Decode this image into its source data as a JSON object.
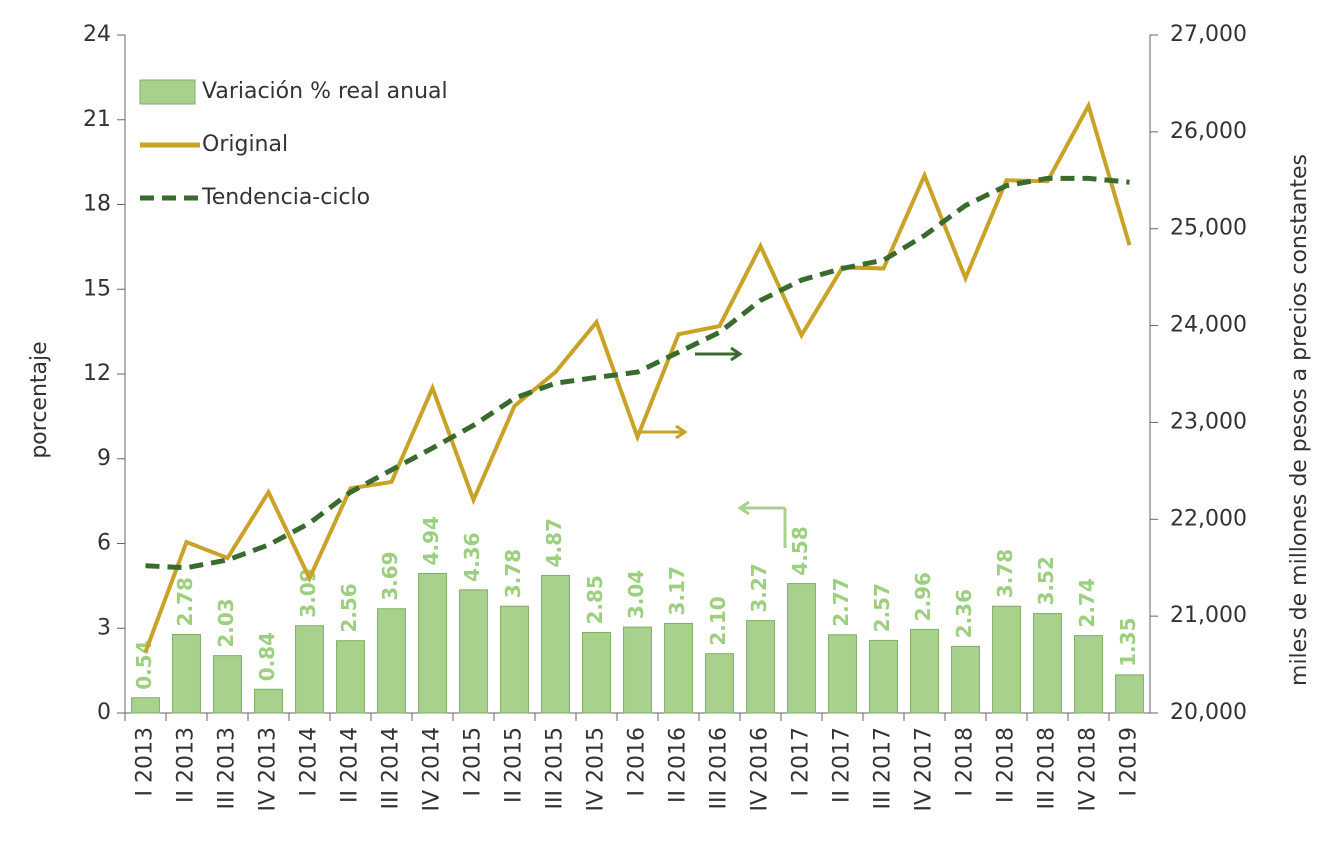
{
  "chart_data": {
    "type": "bar-line",
    "categories": [
      "I 2013",
      "II 2013",
      "III 2013",
      "IV 2013",
      "I 2014",
      "II 2014",
      "III 2014",
      "IV 2014",
      "I 2015",
      "II 2015",
      "III 2015",
      "IV 2015",
      "I 2016",
      "II 2016",
      "III 2016",
      "IV 2016",
      "I 2017",
      "II 2017",
      "III 2017",
      "IV 2017",
      "I 2018",
      "II 2018",
      "III 2018",
      "IV 2018",
      "I 2019"
    ],
    "y_label": "porcentaje",
    "y2_label": "miles de millones de pesos a precios constantes",
    "ylim": [
      0,
      24
    ],
    "yticks": [
      0,
      3,
      6,
      9,
      12,
      15,
      18,
      21,
      24
    ],
    "y2lim": [
      20000,
      27000
    ],
    "y2ticks": [
      {
        "value": 20000,
        "label": "20,000"
      },
      {
        "value": 21000,
        "label": "21,000"
      },
      {
        "value": 22000,
        "label": "22,000"
      },
      {
        "value": 23000,
        "label": "23,000"
      },
      {
        "value": 24000,
        "label": "24,000"
      },
      {
        "value": 25000,
        "label": "25,000"
      },
      {
        "value": 26000,
        "label": "26,000"
      },
      {
        "value": 27000,
        "label": "27,000"
      }
    ],
    "legend": "top-left",
    "series": [
      {
        "name": "Variación % real anual",
        "type": "bar",
        "color": "#a9d18e",
        "values": [
          0.54,
          2.78,
          2.03,
          0.84,
          3.09,
          2.56,
          3.69,
          4.94,
          4.36,
          3.78,
          4.87,
          2.85,
          3.04,
          3.17,
          2.1,
          3.27,
          4.58,
          2.77,
          2.57,
          2.96,
          2.36,
          3.78,
          3.52,
          2.74,
          1.35
        ],
        "value_labels": [
          "0.54",
          "2.78",
          "2.03",
          "0.84",
          "3.09",
          "2.56",
          "3.69",
          "4.94",
          "4.36",
          "3.78",
          "4.87",
          "2.85",
          "3.04",
          "3.17",
          "2.10",
          "3.27",
          "4.58",
          "2.77",
          "2.57",
          "2.96",
          "2.36",
          "3.78",
          "3.52",
          "2.74",
          "1.35"
        ]
      },
      {
        "name": "Original",
        "type": "line",
        "axis": "y2",
        "color": "#c9a227",
        "values": [
          20630,
          21765,
          21600,
          22280,
          21390,
          22320,
          22385,
          23355,
          22200,
          23170,
          23520,
          24035,
          22850,
          23910,
          23995,
          24820,
          23900,
          24600,
          24590,
          25550,
          24490,
          25500,
          25490,
          26270,
          24830
        ]
      },
      {
        "name": "Tendencia-ciclo",
        "type": "dashed-line",
        "axis": "y2",
        "color": "#3a6b2e",
        "values": [
          21520,
          21500,
          21580,
          21735,
          21960,
          22280,
          22510,
          22735,
          22970,
          23250,
          23405,
          23465,
          23520,
          23725,
          23930,
          24260,
          24470,
          24590,
          24675,
          24930,
          25240,
          25445,
          25520,
          25520,
          25480
        ]
      }
    ]
  }
}
